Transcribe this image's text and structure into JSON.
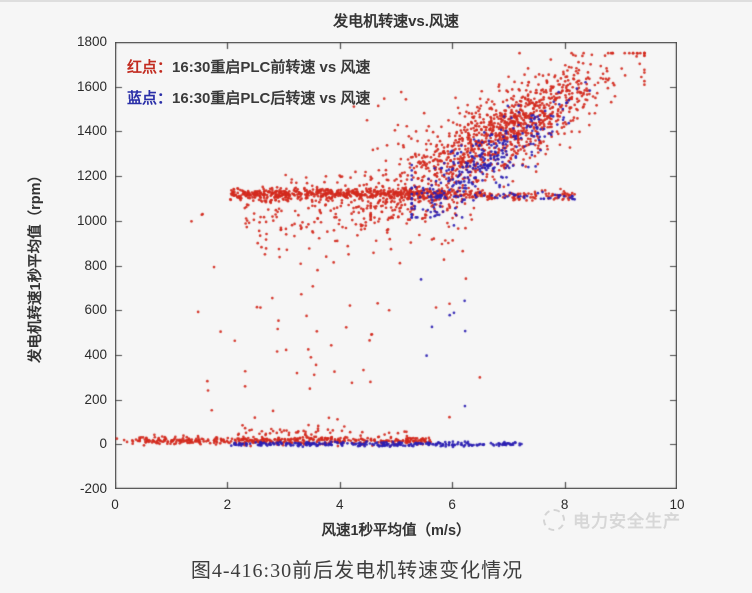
{
  "page": {
    "caption": "图4-416:30前后发电机转速变化情况"
  },
  "watermark": {
    "icon": "power-safety-logo-icon",
    "label": "电力安全生产"
  },
  "chart_data": {
    "type": "scatter",
    "title": "发电机转速vs.风速",
    "xlabel": "风速1秒平均值（m/s）",
    "ylabel": "发电机转速1秒平均值（rpm）",
    "xlim": [
      0,
      10
    ],
    "ylim": [
      -200,
      1800
    ],
    "xticks": [
      0,
      2,
      4,
      6,
      8,
      10
    ],
    "yticks": [
      -200,
      0,
      200,
      400,
      600,
      800,
      1000,
      1200,
      1400,
      1600,
      1800
    ],
    "grid": false,
    "frame_color": "#4a4a4a",
    "seed": 1337,
    "legend": {
      "position": "top-left-inside",
      "entries": [
        {
          "prefix": "红点：",
          "label": "16:30重启PLC前转速 vs 风速",
          "color": "#c22b20"
        },
        {
          "prefix": "蓝点：",
          "label": "16:30重启PLC后转速 vs 风速",
          "color": "#2a2fa8"
        }
      ]
    },
    "series": [
      {
        "name": "16:30重启PLC前转速 vs 风速",
        "color": "#d2291d",
        "marker": "dot",
        "clusters": [
          {
            "kind": "band",
            "n": 430,
            "x": [
              0.35,
              5.62
            ],
            "y_mean": 16,
            "y_sd": 9,
            "y_clip": [
              -8,
              70
            ]
          },
          {
            "kind": "band",
            "n": 70,
            "x": [
              2.1,
              5.5
            ],
            "y_mean": 48,
            "y_sd": 20,
            "y_clip": [
              10,
              130
            ]
          },
          {
            "kind": "band",
            "n": 7,
            "x": [
              0.0,
              0.33
            ],
            "y_mean": 12,
            "y_sd": 7,
            "y_clip": [
              -5,
              30
            ]
          },
          {
            "kind": "band",
            "n": 640,
            "x": [
              2.05,
              6.55
            ],
            "y_mean": 1120,
            "y_sd": 13,
            "y_clip": [
              1085,
              1162
            ]
          },
          {
            "kind": "band",
            "n": 95,
            "x": [
              6.55,
              8.18
            ],
            "y_mean": 1112,
            "y_sd": 10,
            "y_clip": [
              1085,
              1145
            ]
          },
          {
            "kind": "topdecay",
            "n": 140,
            "x": [
              2.3,
              4.7
            ],
            "y_top": 1095,
            "y_sd": 115,
            "y_min": 775
          },
          {
            "kind": "topdecay",
            "n": 60,
            "x": [
              4.6,
              6.4
            ],
            "y_top": 1095,
            "y_sd": 110,
            "y_min": 800
          },
          {
            "kind": "uniform",
            "n": 40,
            "x": [
              1.25,
              6.85
            ],
            "y": [
              70,
              830
            ]
          },
          {
            "kind": "uniform",
            "n": 8,
            "x": [
              3.3,
              4.7
            ],
            "y": [
              250,
              520
            ]
          },
          {
            "kind": "uniform",
            "n": 20,
            "x": [
              3.0,
              5.0
            ],
            "y": [
              1150,
              1230
            ]
          },
          {
            "kind": "uniform",
            "n": 3,
            "x": [
              0.85,
              1.75
            ],
            "y": [
              990,
              1060
            ]
          },
          {
            "kind": "uniform",
            "n": 16,
            "x": [
              4.15,
              5.35
            ],
            "y": [
              1190,
              1590
            ]
          },
          {
            "kind": "cloud",
            "n": 1180,
            "x_mean": 6.85,
            "x_sd": 1.03,
            "x_range": [
              4.55,
              9.42
            ],
            "x0": 4.6,
            "y_base": 1085,
            "slope": 136,
            "y_sd": 92,
            "y_range": [
              1005,
              1750
            ]
          }
        ]
      },
      {
        "name": "16:30重启PLC后转速 vs 风速",
        "color": "#2b1fb2",
        "marker": "dot",
        "clusters": [
          {
            "kind": "band",
            "n": 240,
            "x": [
              2.02,
              6.3
            ],
            "y_mean": 1,
            "y_sd": 5,
            "y_clip": [
              -12,
              14
            ]
          },
          {
            "kind": "band",
            "n": 45,
            "x": [
              6.3,
              7.25
            ],
            "y_mean": 0,
            "y_sd": 4,
            "y_clip": [
              -10,
              12
            ]
          },
          {
            "kind": "band",
            "n": 55,
            "x": [
              5.55,
              8.2
            ],
            "y_mean": 1107,
            "y_sd": 9,
            "y_clip": [
              1085,
              1130
            ]
          },
          {
            "kind": "uniform",
            "n": 9,
            "x": [
              5.4,
              6.3
            ],
            "y": [
              120,
              980
            ]
          },
          {
            "kind": "cloud",
            "n": 310,
            "x_mean": 6.55,
            "x_sd": 0.78,
            "x_range": [
              5.28,
              8.45
            ],
            "x0": 5.2,
            "y_base": 1060,
            "slope": 148,
            "y_sd": 72,
            "y_range": [
              1015,
              1620
            ]
          }
        ]
      }
    ]
  }
}
